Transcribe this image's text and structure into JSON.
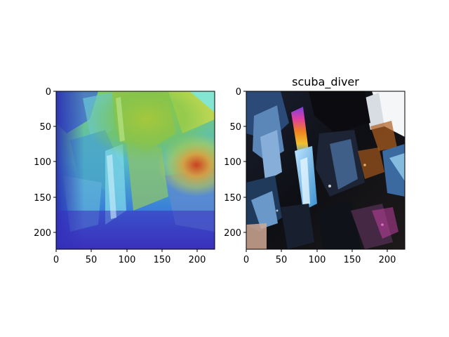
{
  "figure": {
    "panels": [
      {
        "title": "",
        "image_description": "Grad-CAM style heatmap (jet colormap) overlaid on a close-up photo of iridescent crystals",
        "xticks": [
          "0",
          "50",
          "100",
          "150",
          "200"
        ],
        "yticks": [
          "0",
          "50",
          "100",
          "150",
          "200"
        ]
      },
      {
        "title": "scuba_diver",
        "image_description": "Close-up photo of dark iridescent titanium aura quartz crystals",
        "xticks": [
          "0",
          "50",
          "100",
          "150",
          "200"
        ],
        "yticks": [
          "0",
          "50",
          "100",
          "150",
          "200"
        ]
      }
    ],
    "colors": {
      "jet_blue": "#2a3fd6",
      "jet_cyan": "#37d3e8",
      "jet_green": "#8fcf3a",
      "jet_yellow": "#e6d23a",
      "jet_red": "#d03a18"
    }
  }
}
